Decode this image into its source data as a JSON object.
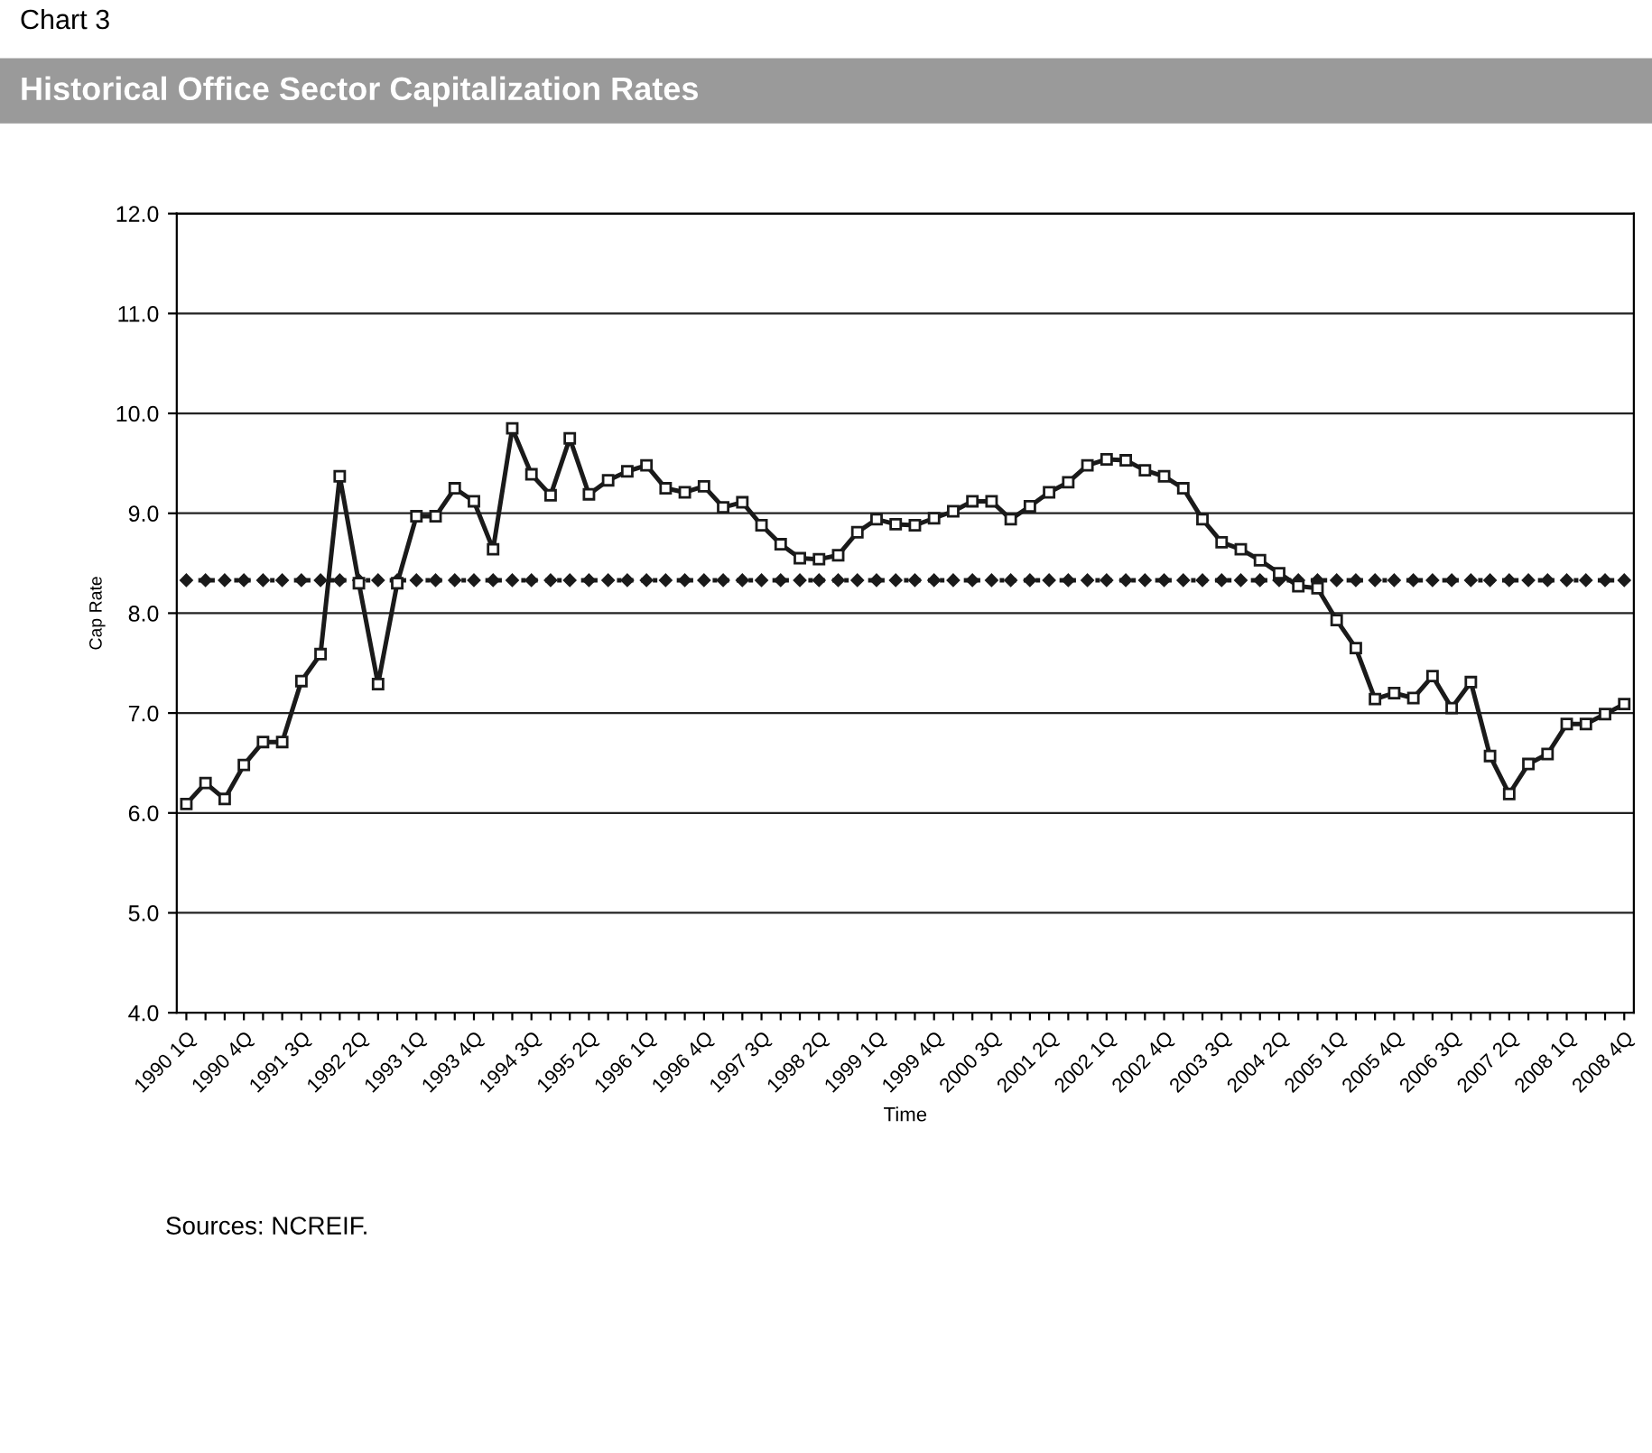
{
  "chart_data": {
    "type": "line",
    "title": "Historical Office Sector Capitalization Rates",
    "xlabel": "Time",
    "ylabel": "Cap Rate",
    "annotations": [
      "Chart 3",
      "Sources: NCREIF."
    ],
    "categories": [
      "1990 1Q",
      null,
      null,
      "1990 4Q",
      null,
      null,
      "1991 3Q",
      null,
      null,
      "1992 2Q",
      null,
      null,
      "1993 1Q",
      null,
      null,
      "1993 4Q",
      null,
      null,
      "1994 3Q",
      null,
      null,
      "1995 2Q",
      null,
      null,
      "1996 1Q",
      null,
      null,
      "1996 4Q",
      null,
      null,
      "1997 3Q",
      null,
      null,
      "1998 2Q",
      null,
      null,
      "1999 1Q",
      null,
      null,
      "1999 4Q",
      null,
      null,
      "2000 3Q",
      null,
      null,
      "2001 2Q",
      null,
      null,
      "2002 1Q",
      null,
      null,
      "2002 4Q",
      null,
      null,
      "2003 3Q",
      null,
      null,
      "2004 2Q",
      null,
      null,
      "2005 1Q",
      null,
      null,
      "2005 4Q",
      null,
      null,
      "2006 3Q",
      null,
      null,
      "2007 2Q",
      null,
      null,
      "2008 1Q",
      null,
      null,
      "2008 4Q"
    ],
    "series": [
      {
        "color": "#1a1a1a",
        "marker": "square",
        "line_style": "solid",
        "values": [
          6.09,
          6.3,
          6.14,
          6.48,
          6.71,
          6.71,
          7.32,
          7.59,
          9.37,
          8.3,
          7.29,
          8.3,
          8.97,
          8.97,
          9.25,
          9.12,
          8.64,
          9.85,
          9.39,
          9.18,
          9.75,
          9.19,
          9.33,
          9.42,
          9.48,
          9.25,
          9.21,
          9.27,
          9.06,
          9.11,
          8.88,
          8.69,
          8.55,
          8.54,
          8.58,
          8.81,
          8.94,
          8.89,
          8.88,
          8.95,
          9.02,
          9.12,
          9.12,
          8.94,
          9.07,
          9.21,
          9.31,
          9.48,
          9.54,
          9.53,
          9.43,
          9.37,
          9.25,
          8.94,
          8.71,
          8.64,
          8.53,
          8.4,
          8.27,
          8.25,
          7.93,
          7.65,
          7.14,
          7.2,
          7.15,
          7.37,
          7.05,
          7.31,
          6.57,
          6.19,
          6.49,
          6.59,
          6.89,
          6.89,
          6.99,
          7.09
        ]
      },
      {
        "color": "#1a1a1a",
        "marker": "diamond",
        "line_style": "dotted",
        "values": [
          8.33,
          8.33,
          8.33,
          8.33,
          8.33,
          8.33,
          8.33,
          8.33,
          8.33,
          8.33,
          8.33,
          8.33,
          8.33,
          8.33,
          8.33,
          8.33,
          8.33,
          8.33,
          8.33,
          8.33,
          8.33,
          8.33,
          8.33,
          8.33,
          8.33,
          8.33,
          8.33,
          8.33,
          8.33,
          8.33,
          8.33,
          8.33,
          8.33,
          8.33,
          8.33,
          8.33,
          8.33,
          8.33,
          8.33,
          8.33,
          8.33,
          8.33,
          8.33,
          8.33,
          8.33,
          8.33,
          8.33,
          8.33,
          8.33,
          8.33,
          8.33,
          8.33,
          8.33,
          8.33,
          8.33,
          8.33,
          8.33,
          8.33,
          8.33,
          8.33,
          8.33,
          8.33,
          8.33,
          8.33,
          8.33,
          8.33,
          8.33,
          8.33,
          8.33,
          8.33,
          8.33,
          8.33,
          8.33,
          8.33,
          8.33,
          8.33
        ]
      }
    ],
    "ylim": [
      4.0,
      12.0
    ],
    "yticks": [
      {
        "value": 4,
        "label": "4.0"
      },
      {
        "value": 5,
        "label": "5.0"
      },
      {
        "value": 6,
        "label": "6.0"
      },
      {
        "value": 7,
        "label": "7.0"
      },
      {
        "value": 8,
        "label": "8.0"
      },
      {
        "value": 9,
        "label": "9.0"
      },
      {
        "value": 10,
        "label": "10.0"
      },
      {
        "value": 11,
        "label": "11.0"
      },
      {
        "value": 12,
        "label": "12.0"
      }
    ],
    "grid": "y",
    "legend": false
  }
}
